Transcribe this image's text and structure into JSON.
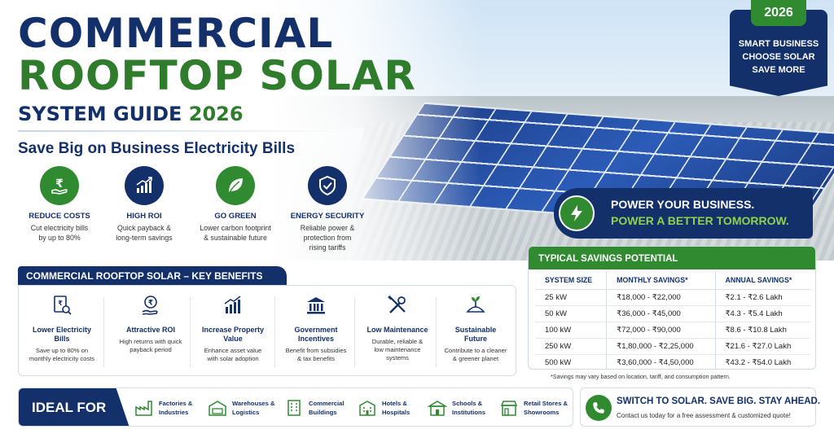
{
  "title": {
    "line1": "COMMERCIAL",
    "line2": "ROOFTOP SOLAR",
    "line3": "SYSTEM GUIDE",
    "year": "2026",
    "subtitle": "Save Big on Business Electricity Bills"
  },
  "badge": {
    "year": "2026",
    "line1": "SMART BUSINESS",
    "line2": "CHOOSE SOLAR",
    "line3": "SAVE MORE"
  },
  "top_benefits": [
    {
      "title": "REDUCE COSTS",
      "desc1": "Cut electricity bills",
      "desc2": "by up to 80%",
      "icon": "rupee-hand-icon",
      "color": "#2f8a30"
    },
    {
      "title": "HIGH ROI",
      "desc1": "Quick payback &",
      "desc2": "long-term savings",
      "icon": "growth-chart-icon",
      "color": "#13306b"
    },
    {
      "title": "GO GREEN",
      "desc1": "Lower carbon footprint",
      "desc2": "& sustainable future",
      "icon": "leaf-icon",
      "color": "#2f8a30"
    },
    {
      "title": "ENERGY SECURITY",
      "desc1": "Reliable power &",
      "desc2": "protection from",
      "desc3": "rising tariffs",
      "icon": "shield-check-icon",
      "color": "#13306b"
    }
  ],
  "power_banner": {
    "line1": "POWER YOUR BUSINESS.",
    "line2": "POWER A BETTER TOMORROW.",
    "icon": "lightning-icon"
  },
  "key_benefits": {
    "heading": "COMMERCIAL ROOFTOP SOLAR – KEY BENEFITS",
    "items": [
      {
        "title1": "Lower Electricity",
        "title2": "Bills",
        "desc1": "Save up to 80% on",
        "desc2": "monthly electricity costs",
        "icon": "bill-search-icon"
      },
      {
        "title1": "Attractive ROI",
        "title2": "",
        "desc1": "High returns with quick",
        "desc2": "payback period",
        "icon": "rupee-coin-hand-icon"
      },
      {
        "title1": "Increase Property",
        "title2": "Value",
        "desc1": "Enhance asset value",
        "desc2": "with solar adoption",
        "icon": "bar-growth-icon"
      },
      {
        "title1": "Government",
        "title2": "Incentives",
        "desc1": "Benefit from subsidies",
        "desc2": "& tax benefits",
        "icon": "government-building-icon"
      },
      {
        "title1": "Low Maintenance",
        "title2": "",
        "desc1": "Durable, reliable &",
        "desc2": "low maintenance",
        "desc3": "systems",
        "icon": "tools-icon"
      },
      {
        "title1": "Sustainable",
        "title2": "Future",
        "desc1": "Contribute to a cleaner",
        "desc2": "& greener planet",
        "icon": "plant-globe-icon"
      }
    ]
  },
  "savings": {
    "heading": "TYPICAL SAVINGS POTENTIAL",
    "columns": [
      "SYSTEM SIZE",
      "MONTHLY SAVINGS*",
      "ANNUAL SAVINGS*"
    ],
    "rows": [
      [
        "25 kW",
        "₹18,000 - ₹22,000",
        "₹2.1 - ₹2.6 Lakh"
      ],
      [
        "50 kW",
        "₹36,000 - ₹45,000",
        "₹4.3 - ₹5.4 Lakh"
      ],
      [
        "100 kW",
        "₹72,000 - ₹90,000",
        "₹8.6 - ₹10.8 Lakh"
      ],
      [
        "250 kW",
        "₹1,80,000 - ₹2,25,000",
        "₹21.6 - ₹27.0 Lakh"
      ],
      [
        "500 kW",
        "₹3,60,000 - ₹4,50,000",
        "₹43.2 - ₹54.0 Lakh"
      ]
    ],
    "note": "*Savings may vary based on location, tariff, and consumption pattern."
  },
  "ideal_for": {
    "label": "IDEAL FOR",
    "items": [
      {
        "line1": "Factories &",
        "line2": "Industries",
        "icon": "factory-icon"
      },
      {
        "line1": "Warehouses &",
        "line2": "Logistics",
        "icon": "warehouse-truck-icon"
      },
      {
        "line1": "Commercial",
        "line2": "Buildings",
        "icon": "office-building-icon"
      },
      {
        "line1": "Hotels &",
        "line2": "Hospitals",
        "icon": "hotel-icon"
      },
      {
        "line1": "Schools &",
        "line2": "Institutions",
        "icon": "school-icon"
      },
      {
        "line1": "Retail Stores &",
        "line2": "Showrooms",
        "icon": "store-icon"
      }
    ]
  },
  "cta": {
    "line1": "SWITCH TO SOLAR. SAVE BIG. STAY AHEAD.",
    "line2": "Contact us today for a free assessment & customized quote!",
    "icon": "phone-icon"
  },
  "colors": {
    "navy": "#13306b",
    "green": "#2f8a30",
    "light_green": "#8fd24f"
  }
}
